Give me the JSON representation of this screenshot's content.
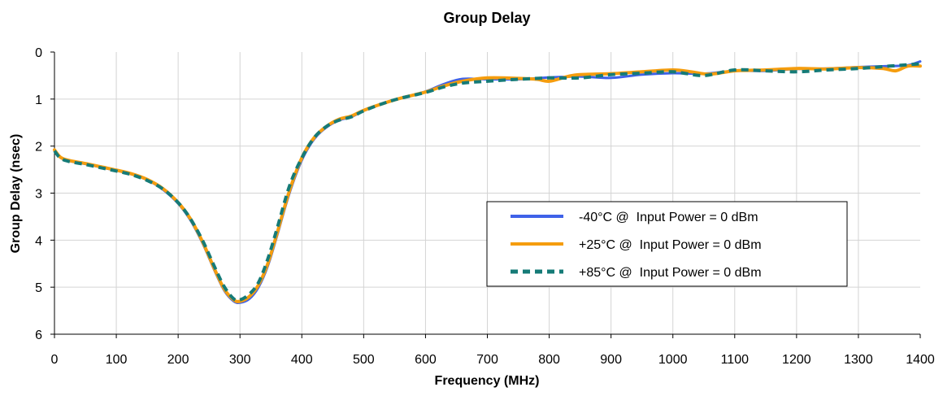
{
  "chart_data": {
    "type": "line",
    "title": "Group Delay",
    "xlabel": "Frequency (MHz)",
    "ylabel": "Group Delay (nsec)",
    "xlim": [
      0,
      1400
    ],
    "ylim": [
      0,
      6
    ],
    "y_inverted": true,
    "grid": true,
    "legend_position": "right-center",
    "x_ticks": [
      "0",
      "100",
      "200",
      "300",
      "400",
      "500",
      "600",
      "700",
      "800",
      "900",
      "1000",
      "1100",
      "1200",
      "1300",
      "1400"
    ],
    "y_ticks": [
      "0",
      "1",
      "2",
      "3",
      "4",
      "5",
      "6"
    ],
    "series": [
      {
        "name": "-40°C @  Input Power = 0 dBm",
        "color": "#3f62e8",
        "style": "solid",
        "points": [
          [
            0,
            2.1
          ],
          [
            10,
            2.25
          ],
          [
            25,
            2.32
          ],
          [
            50,
            2.38
          ],
          [
            75,
            2.45
          ],
          [
            100,
            2.52
          ],
          [
            125,
            2.6
          ],
          [
            150,
            2.72
          ],
          [
            175,
            2.92
          ],
          [
            200,
            3.22
          ],
          [
            220,
            3.58
          ],
          [
            240,
            4.08
          ],
          [
            260,
            4.68
          ],
          [
            275,
            5.08
          ],
          [
            290,
            5.3
          ],
          [
            300,
            5.33
          ],
          [
            315,
            5.25
          ],
          [
            330,
            5.0
          ],
          [
            345,
            4.55
          ],
          [
            360,
            3.9
          ],
          [
            380,
            3.0
          ],
          [
            400,
            2.3
          ],
          [
            420,
            1.85
          ],
          [
            440,
            1.6
          ],
          [
            460,
            1.45
          ],
          [
            480,
            1.38
          ],
          [
            500,
            1.25
          ],
          [
            530,
            1.1
          ],
          [
            560,
            0.98
          ],
          [
            600,
            0.84
          ],
          [
            630,
            0.68
          ],
          [
            660,
            0.57
          ],
          [
            700,
            0.58
          ],
          [
            750,
            0.58
          ],
          [
            800,
            0.54
          ],
          [
            850,
            0.52
          ],
          [
            900,
            0.55
          ],
          [
            950,
            0.48
          ],
          [
            1000,
            0.45
          ],
          [
            1050,
            0.46
          ],
          [
            1100,
            0.4
          ],
          [
            1150,
            0.4
          ],
          [
            1200,
            0.36
          ],
          [
            1250,
            0.35
          ],
          [
            1300,
            0.32
          ],
          [
            1350,
            0.3
          ],
          [
            1380,
            0.28
          ],
          [
            1400,
            0.2
          ]
        ]
      },
      {
        "name": "+25°C @  Input Power = 0 dBm",
        "color": "#f59d0e",
        "style": "solid",
        "points": [
          [
            0,
            2.08
          ],
          [
            10,
            2.24
          ],
          [
            25,
            2.31
          ],
          [
            50,
            2.37
          ],
          [
            75,
            2.44
          ],
          [
            100,
            2.51
          ],
          [
            125,
            2.59
          ],
          [
            150,
            2.71
          ],
          [
            175,
            2.9
          ],
          [
            200,
            3.2
          ],
          [
            220,
            3.55
          ],
          [
            240,
            4.05
          ],
          [
            260,
            4.65
          ],
          [
            275,
            5.05
          ],
          [
            290,
            5.27
          ],
          [
            300,
            5.3
          ],
          [
            315,
            5.2
          ],
          [
            330,
            4.95
          ],
          [
            345,
            4.5
          ],
          [
            360,
            3.85
          ],
          [
            380,
            2.95
          ],
          [
            400,
            2.25
          ],
          [
            420,
            1.82
          ],
          [
            440,
            1.58
          ],
          [
            460,
            1.43
          ],
          [
            480,
            1.36
          ],
          [
            500,
            1.24
          ],
          [
            530,
            1.1
          ],
          [
            560,
            0.98
          ],
          [
            600,
            0.85
          ],
          [
            630,
            0.72
          ],
          [
            660,
            0.62
          ],
          [
            700,
            0.55
          ],
          [
            750,
            0.56
          ],
          [
            780,
            0.58
          ],
          [
            800,
            0.62
          ],
          [
            830,
            0.52
          ],
          [
            850,
            0.48
          ],
          [
            900,
            0.46
          ],
          [
            950,
            0.42
          ],
          [
            1000,
            0.38
          ],
          [
            1030,
            0.42
          ],
          [
            1060,
            0.47
          ],
          [
            1100,
            0.4
          ],
          [
            1150,
            0.38
          ],
          [
            1200,
            0.35
          ],
          [
            1250,
            0.36
          ],
          [
            1300,
            0.33
          ],
          [
            1340,
            0.35
          ],
          [
            1360,
            0.4
          ],
          [
            1380,
            0.3
          ],
          [
            1400,
            0.3
          ]
        ]
      },
      {
        "name": "+85°C @  Input Power = 0 dBm",
        "color": "#157b77",
        "style": "dashed",
        "points": [
          [
            0,
            2.1
          ],
          [
            10,
            2.26
          ],
          [
            25,
            2.33
          ],
          [
            50,
            2.39
          ],
          [
            75,
            2.46
          ],
          [
            100,
            2.53
          ],
          [
            125,
            2.61
          ],
          [
            150,
            2.73
          ],
          [
            175,
            2.91
          ],
          [
            200,
            3.2
          ],
          [
            220,
            3.55
          ],
          [
            240,
            4.02
          ],
          [
            260,
            4.6
          ],
          [
            275,
            5.0
          ],
          [
            290,
            5.25
          ],
          [
            300,
            5.27
          ],
          [
            315,
            5.15
          ],
          [
            330,
            4.9
          ],
          [
            345,
            4.4
          ],
          [
            360,
            3.75
          ],
          [
            380,
            2.85
          ],
          [
            400,
            2.25
          ],
          [
            420,
            1.82
          ],
          [
            440,
            1.58
          ],
          [
            460,
            1.45
          ],
          [
            480,
            1.38
          ],
          [
            500,
            1.25
          ],
          [
            530,
            1.1
          ],
          [
            560,
            0.98
          ],
          [
            600,
            0.86
          ],
          [
            630,
            0.74
          ],
          [
            660,
            0.66
          ],
          [
            700,
            0.62
          ],
          [
            750,
            0.58
          ],
          [
            800,
            0.55
          ],
          [
            850,
            0.55
          ],
          [
            900,
            0.48
          ],
          [
            950,
            0.45
          ],
          [
            1000,
            0.42
          ],
          [
            1050,
            0.5
          ],
          [
            1100,
            0.38
          ],
          [
            1150,
            0.4
          ],
          [
            1200,
            0.42
          ],
          [
            1250,
            0.38
          ],
          [
            1300,
            0.35
          ],
          [
            1350,
            0.3
          ],
          [
            1380,
            0.27
          ],
          [
            1400,
            0.25
          ]
        ]
      }
    ]
  }
}
